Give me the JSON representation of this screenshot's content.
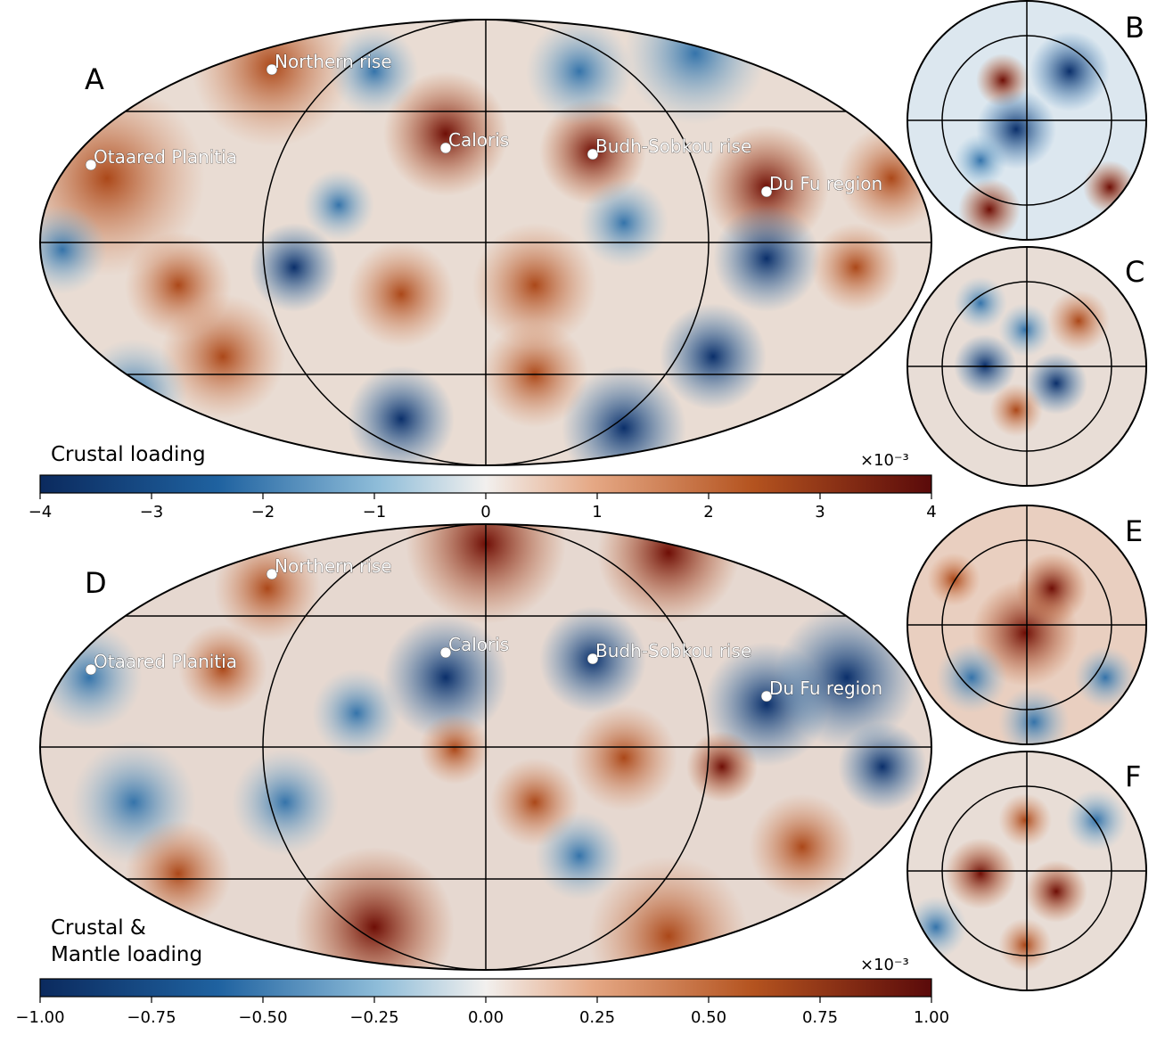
{
  "panels": {
    "A": {
      "letter": "A",
      "title": "Crustal loading"
    },
    "B": {
      "letter": "B"
    },
    "C": {
      "letter": "C"
    },
    "D": {
      "letter": "D",
      "title_line1": "Crustal &",
      "title_line2": "Mantle loading"
    },
    "E": {
      "letter": "E"
    },
    "F": {
      "letter": "F"
    }
  },
  "features": [
    "Northern rise",
    "Caloris",
    "Otaared Planitia",
    "Budh-Sobkou rise",
    "Du Fu region"
  ],
  "colorbar_top": {
    "multiplier": "×10⁻³",
    "ticks": [
      "−4",
      "−3",
      "−2",
      "−1",
      "0",
      "1",
      "2",
      "3",
      "4"
    ],
    "range": [
      -4,
      4
    ]
  },
  "colorbar_bottom": {
    "multiplier": "×10⁻³",
    "ticks": [
      "−1.00",
      "−0.75",
      "−0.50",
      "−0.25",
      "0.00",
      "0.25",
      "0.50",
      "0.75",
      "1.00"
    ],
    "range": [
      -1,
      1
    ]
  },
  "colors": {
    "low": "#0b2a5e",
    "mid": "#f2f0ee",
    "high": "#5a0a0a"
  }
}
